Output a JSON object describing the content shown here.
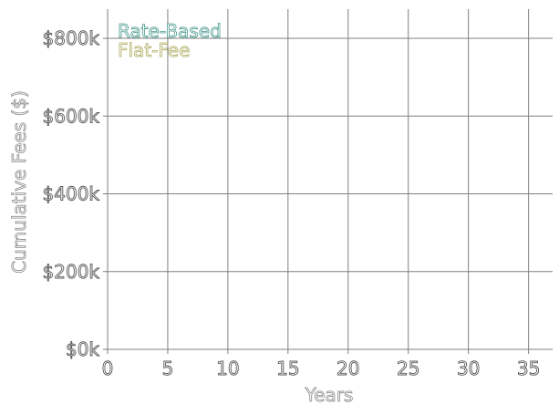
{
  "chart_data": {
    "type": "line",
    "title": "",
    "xlabel": "Years",
    "ylabel": "Cumulative Fees ($)",
    "xlim": [
      0,
      37
    ],
    "ylim": [
      0,
      800000
    ],
    "xticks": [
      0,
      5,
      10,
      15,
      20,
      25,
      30,
      35
    ],
    "xtick_labels": [
      "0",
      "5",
      "10",
      "15",
      "20",
      "25",
      "30",
      "35"
    ],
    "yticks": [
      0,
      200000,
      400000,
      600000,
      800000
    ],
    "ytick_labels": [
      "$0k",
      "$200k",
      "$400k",
      "$600k",
      "$800k"
    ],
    "grid": true,
    "legend_position": "top-left",
    "series": [
      {
        "name": "Rate-Based",
        "color": "#4a9a8f",
        "values": []
      },
      {
        "name": "Flat-Fee",
        "color": "#b0ad62",
        "values": []
      }
    ]
  }
}
